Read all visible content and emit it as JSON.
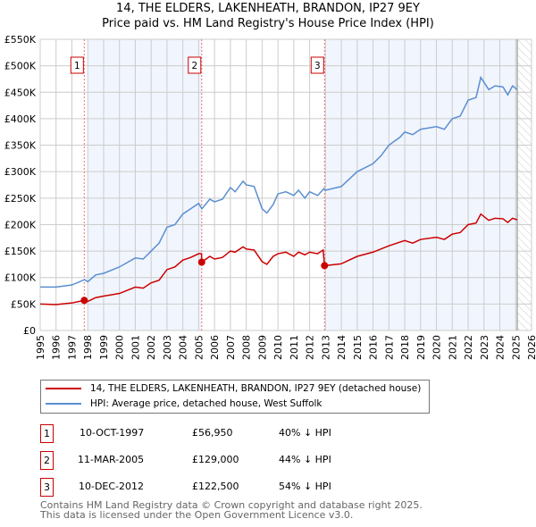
{
  "title": "14, THE ELDERS, LAKENHEATH, BRANDON, IP27 9EY",
  "subtitle": "Price paid vs. HM Land Registry's House Price Index (HPI)",
  "chart_data": {
    "type": "line",
    "title": "14, THE ELDERS, LAKENHEATH, BRANDON, IP27 9EY",
    "subtitle": "Price paid vs. HM Land Registry's House Price Index (HPI)",
    "xlim": [
      1995,
      2026
    ],
    "ylim": [
      0,
      550000
    ],
    "x_ticks": [
      "1995",
      "1996",
      "1997",
      "1998",
      "1999",
      "2000",
      "2001",
      "2002",
      "2003",
      "2004",
      "2005",
      "2006",
      "2007",
      "2008",
      "2009",
      "2010",
      "2011",
      "2012",
      "2013",
      "2014",
      "2015",
      "2016",
      "2017",
      "2018",
      "2019",
      "2020",
      "2021",
      "2022",
      "2023",
      "2024",
      "2025",
      "2026"
    ],
    "y_ticks": [
      "£0",
      "£50K",
      "£100K",
      "£150K",
      "£200K",
      "£250K",
      "£300K",
      "£350K",
      "£400K",
      "£450K",
      "£500K",
      "£550K"
    ],
    "grid": true,
    "legend_position": "below",
    "series": [
      {
        "name": "14, THE ELDERS, LAKENHEATH, BRANDON, IP27 9EY (detached house)",
        "color": "#cc0000",
        "x": [
          1995,
          1996,
          1997,
          1997.78,
          1998,
          1998.5,
          1999,
          2000,
          2001,
          2001.5,
          2002,
          2002.5,
          2003,
          2003.5,
          2004,
          2004.5,
          2005,
          2005.18,
          2005.19,
          2005.7,
          2006,
          2006.5,
          2007,
          2007.3,
          2007.8,
          2008,
          2008.5,
          2009,
          2009.3,
          2009.7,
          2010,
          2010.5,
          2011,
          2011.3,
          2011.7,
          2012,
          2012.5,
          2012.85,
          2012.94,
          2014,
          2015,
          2016,
          2017,
          2018,
          2018.5,
          2019,
          2020,
          2020.5,
          2021,
          2021.5,
          2022,
          2022.5,
          2022.8,
          2023.3,
          2023.7,
          2024.2,
          2024.5,
          2024.8,
          2025.1
        ],
        "y": [
          50000,
          49000,
          52000,
          56950,
          55000,
          62000,
          65000,
          70000,
          82000,
          80000,
          90000,
          95000,
          115000,
          120000,
          133000,
          138000,
          145000,
          145000,
          129000,
          140000,
          135000,
          138000,
          150000,
          148000,
          158000,
          154000,
          152000,
          130000,
          125000,
          140000,
          145000,
          148000,
          140000,
          148000,
          143000,
          148000,
          145000,
          152000,
          122500,
          126000,
          140000,
          148000,
          160000,
          170000,
          165000,
          172000,
          176000,
          172000,
          182000,
          185000,
          200000,
          203000,
          220000,
          208000,
          212000,
          211000,
          204000,
          212000,
          209000
        ]
      },
      {
        "name": "HPI: Average price, detached house, West Suffolk",
        "color": "#5b8fd0",
        "x": [
          1995,
          1996,
          1997,
          1997.8,
          1998,
          1998.5,
          1999,
          2000,
          2001,
          2001.5,
          2002,
          2002.5,
          2003,
          2003.5,
          2004,
          2004.5,
          2005,
          2005.2,
          2005.7,
          2006,
          2006.5,
          2007,
          2007.3,
          2007.8,
          2008,
          2008.5,
          2009,
          2009.3,
          2009.7,
          2010,
          2010.5,
          2011,
          2011.3,
          2011.7,
          2012,
          2012.5,
          2012.9,
          2013,
          2014,
          2015,
          2016,
          2016.5,
          2017,
          2017.7,
          2018,
          2018.5,
          2019,
          2020,
          2020.5,
          2021,
          2021.5,
          2022,
          2022.5,
          2022.8,
          2023.3,
          2023.7,
          2024.2,
          2024.5,
          2024.8,
          2025.1
        ],
        "y": [
          82000,
          82000,
          86000,
          96000,
          92000,
          105000,
          108000,
          120000,
          137000,
          135000,
          150000,
          165000,
          195000,
          200000,
          220000,
          230000,
          240000,
          230000,
          248000,
          243000,
          248000,
          270000,
          262000,
          282000,
          275000,
          272000,
          230000,
          222000,
          238000,
          258000,
          262000,
          255000,
          265000,
          250000,
          262000,
          255000,
          268000,
          265000,
          272000,
          300000,
          315000,
          330000,
          350000,
          365000,
          375000,
          370000,
          380000,
          385000,
          380000,
          400000,
          405000,
          435000,
          440000,
          478000,
          455000,
          462000,
          460000,
          445000,
          462000,
          455000
        ]
      }
    ],
    "sales": [
      {
        "label": "1",
        "x": 1997.78,
        "y": 56950
      },
      {
        "label": "2",
        "x": 2005.19,
        "y": 129000
      },
      {
        "label": "3",
        "x": 2012.94,
        "y": 122500
      }
    ]
  },
  "legend": [
    "14, THE ELDERS, LAKENHEATH, BRANDON, IP27 9EY (detached house)",
    "HPI: Average price, detached house, West Suffolk"
  ],
  "transactions": [
    {
      "num": "1",
      "date": "10-OCT-1997",
      "price": "£56,950",
      "hpi": "40% ↓ HPI"
    },
    {
      "num": "2",
      "date": "11-MAR-2005",
      "price": "£129,000",
      "hpi": "44% ↓ HPI"
    },
    {
      "num": "3",
      "date": "10-DEC-2012",
      "price": "£122,500",
      "hpi": "54% ↓ HPI"
    }
  ],
  "footer": [
    "Contains HM Land Registry data © Crown copyright and database right 2025.",
    "This data is licensed under the Open Government Licence v3.0."
  ]
}
